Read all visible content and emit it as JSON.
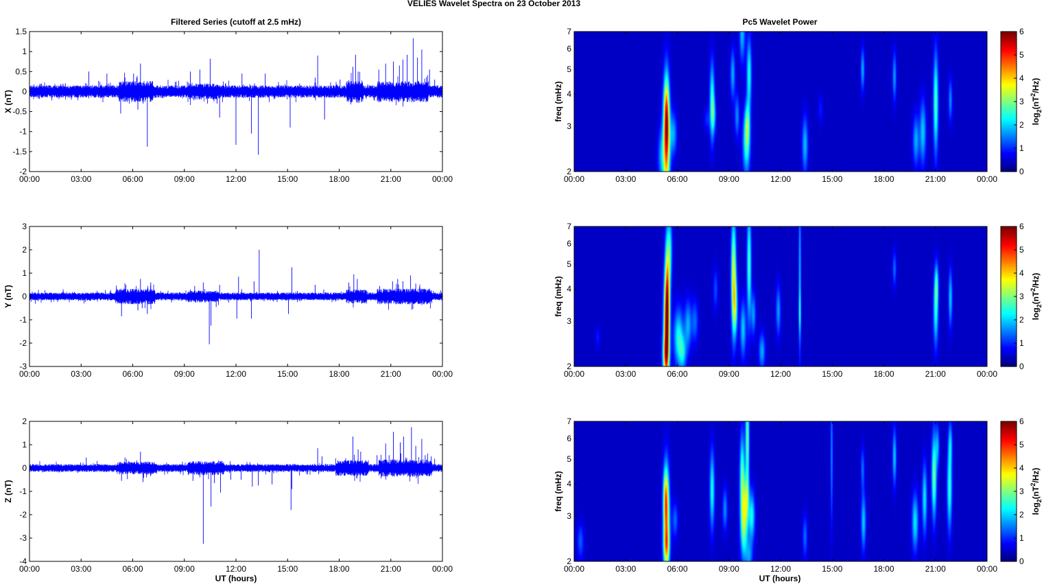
{
  "figure": {
    "title": "VELIES Wavelet Spectra on 23 October   2013",
    "left_column_title": "Filtered Series (cutoff at 2.5 mHz)",
    "right_column_title": "Pc5 Wavelet Power",
    "x_label": "UT (hours)",
    "spectrogram_y_label": "freq (mHz)",
    "colorbar_label": "log2(nT2/Hz)",
    "x_tick_labels": [
      "00:00",
      "03:00",
      "06:00",
      "09:00",
      "12:00",
      "15:00",
      "18:00",
      "21:00",
      "00:00"
    ]
  },
  "colors": {
    "trace": "#0000ff",
    "spectrogram_background": "#00008f",
    "colormap": "jet"
  },
  "chart_data": [
    {
      "type": "line",
      "panel": "X",
      "ylabel": "X (nT)",
      "xlim": [
        0,
        24
      ],
      "ylim": [
        -2,
        1.5
      ],
      "y_ticks": [
        "-2",
        "-1.5",
        "-1",
        "-0.5",
        "0",
        "0.5",
        "1",
        "1.5"
      ],
      "y_tick_values": [
        -2,
        -1.5,
        -1,
        -0.5,
        0,
        0.5,
        1,
        1.5
      ],
      "base_noise": 0.12,
      "activity": [
        [
          0,
          0.3,
          1.0
        ],
        [
          5.2,
          7.2,
          1.7
        ],
        [
          9.2,
          11.0,
          1.3
        ],
        [
          18.4,
          19.4,
          1.8
        ],
        [
          20.2,
          23.2,
          1.7
        ]
      ],
      "spikes": [
        [
          3.45,
          0.5
        ],
        [
          4.5,
          0.45
        ],
        [
          5.3,
          -0.55
        ],
        [
          5.55,
          0.35
        ],
        [
          5.85,
          0.25
        ],
        [
          6.05,
          0.45
        ],
        [
          6.3,
          -0.45
        ],
        [
          6.45,
          0.7
        ],
        [
          6.6,
          -0.3
        ],
        [
          6.85,
          -1.38
        ],
        [
          7.05,
          -0.25
        ],
        [
          9.35,
          0.5
        ],
        [
          9.9,
          0.55
        ],
        [
          10.35,
          -0.3
        ],
        [
          10.5,
          0.82
        ],
        [
          10.9,
          -0.3
        ],
        [
          11.05,
          -0.65
        ],
        [
          12.0,
          -1.33
        ],
        [
          12.35,
          0.45
        ],
        [
          12.9,
          -1.05
        ],
        [
          13.3,
          -1.58
        ],
        [
          13.7,
          0.45
        ],
        [
          15.15,
          -0.9
        ],
        [
          15.7,
          0.2
        ],
        [
          16.6,
          0.35
        ],
        [
          16.75,
          0.9
        ],
        [
          17.15,
          -0.7
        ],
        [
          18.05,
          0.3
        ],
        [
          18.8,
          0.62
        ],
        [
          18.95,
          0.92
        ],
        [
          19.1,
          0.5
        ],
        [
          20.3,
          0.55
        ],
        [
          20.7,
          0.7
        ],
        [
          21.15,
          0.75
        ],
        [
          21.5,
          0.65
        ],
        [
          21.7,
          0.8
        ],
        [
          21.95,
          0.92
        ],
        [
          22.3,
          1.33
        ],
        [
          22.55,
          0.85
        ],
        [
          22.8,
          1.05
        ],
        [
          23.25,
          0.55
        ],
        [
          23.55,
          0.3
        ]
      ]
    },
    {
      "type": "line",
      "panel": "Y",
      "ylabel": "Y (nT)",
      "xlim": [
        0,
        24
      ],
      "ylim": [
        -3,
        3
      ],
      "y_ticks": [
        "-3",
        "-2",
        "-1",
        "0",
        "1",
        "2",
        "3"
      ],
      "y_tick_values": [
        -3,
        -2,
        -1,
        0,
        1,
        2,
        3
      ],
      "base_noise": 0.13,
      "activity": [
        [
          5.0,
          7.3,
          2.0
        ],
        [
          9.2,
          11.0,
          1.5
        ],
        [
          18.4,
          19.6,
          1.8
        ],
        [
          20.2,
          23.4,
          2.0
        ]
      ],
      "spikes": [
        [
          5.35,
          -0.85
        ],
        [
          5.6,
          0.5
        ],
        [
          6.3,
          -0.6
        ],
        [
          6.45,
          0.75
        ],
        [
          6.55,
          -0.5
        ],
        [
          6.85,
          -0.75
        ],
        [
          7.05,
          0.6
        ],
        [
          9.6,
          0.45
        ],
        [
          10.1,
          0.6
        ],
        [
          10.45,
          -2.05
        ],
        [
          10.55,
          -1.25
        ],
        [
          10.85,
          -0.45
        ],
        [
          11.05,
          0.5
        ],
        [
          12.05,
          -0.95
        ],
        [
          12.15,
          0.85
        ],
        [
          12.9,
          -0.95
        ],
        [
          13.05,
          0.65
        ],
        [
          13.35,
          2.0
        ],
        [
          15.05,
          -0.75
        ],
        [
          15.25,
          1.25
        ],
        [
          16.6,
          0.5
        ],
        [
          17.1,
          0.3
        ],
        [
          18.55,
          0.6
        ],
        [
          18.85,
          0.95
        ],
        [
          19.05,
          0.75
        ],
        [
          20.35,
          0.45
        ],
        [
          21.1,
          0.65
        ],
        [
          21.4,
          0.75
        ],
        [
          21.7,
          0.65
        ],
        [
          22.15,
          0.9
        ],
        [
          22.45,
          0.55
        ],
        [
          23.25,
          0.3
        ]
      ]
    },
    {
      "type": "line",
      "panel": "Z",
      "ylabel": "Z (nT)",
      "xlim": [
        0,
        24
      ],
      "ylim": [
        -4,
        2
      ],
      "y_ticks": [
        "-4",
        "-3",
        "-2",
        "-1",
        "0",
        "1",
        "2"
      ],
      "y_tick_values": [
        -4,
        -3,
        -2,
        -1,
        0,
        1,
        2
      ],
      "base_noise": 0.13,
      "activity": [
        [
          5.2,
          7.4,
          1.6
        ],
        [
          9.2,
          11.3,
          1.8
        ],
        [
          17.8,
          19.7,
          2.0
        ],
        [
          20.3,
          23.4,
          2.2
        ]
      ],
      "spikes": [
        [
          3.3,
          0.45
        ],
        [
          5.35,
          -0.55
        ],
        [
          5.55,
          0.45
        ],
        [
          5.75,
          0.3
        ],
        [
          6.45,
          0.7
        ],
        [
          6.6,
          -0.6
        ],
        [
          6.8,
          -0.4
        ],
        [
          9.5,
          -0.55
        ],
        [
          9.9,
          -0.4
        ],
        [
          10.1,
          -3.25
        ],
        [
          10.55,
          -1.65
        ],
        [
          10.75,
          -0.65
        ],
        [
          11.1,
          -1.05
        ],
        [
          11.7,
          -0.5
        ],
        [
          12.3,
          -0.5
        ],
        [
          12.95,
          -0.8
        ],
        [
          13.3,
          -0.75
        ],
        [
          14.1,
          -0.7
        ],
        [
          15.2,
          -1.8
        ],
        [
          15.25,
          -0.9
        ],
        [
          16.75,
          0.85
        ],
        [
          17.0,
          0.5
        ],
        [
          18.8,
          1.35
        ],
        [
          19.1,
          0.8
        ],
        [
          19.25,
          0.7
        ],
        [
          20.2,
          0.55
        ],
        [
          20.7,
          1.05
        ],
        [
          20.9,
          0.55
        ],
        [
          21.15,
          1.55
        ],
        [
          21.55,
          1.1
        ],
        [
          21.75,
          1.35
        ],
        [
          22.2,
          1.75
        ],
        [
          22.45,
          0.95
        ],
        [
          22.8,
          1.25
        ],
        [
          23.0,
          0.55
        ],
        [
          23.35,
          0.5
        ],
        [
          23.55,
          0.4
        ]
      ]
    },
    {
      "type": "heatmap",
      "panel": "X",
      "ylabel": "freq (mHz)",
      "xlim": [
        0,
        24
      ],
      "ylim": [
        2,
        7
      ],
      "y_scale": "log",
      "y_ticks": [
        "2",
        "3",
        "4",
        "5",
        "6",
        "7"
      ],
      "y_tick_values": [
        2,
        3,
        4,
        5,
        6,
        7
      ],
      "colorbar_ticks": [
        "0",
        "1",
        "2",
        "3",
        "4",
        "5",
        "6"
      ],
      "zlim": [
        0,
        6
      ],
      "blobs": [
        [
          5.35,
          2.6,
          0.14,
          1.7,
          4.2
        ],
        [
          5.35,
          3.35,
          0.1,
          1.0,
          2.2
        ],
        [
          5.05,
          2.3,
          0.15,
          0.8,
          1.2
        ],
        [
          5.75,
          2.8,
          0.14,
          0.6,
          1.4
        ],
        [
          8.0,
          3.75,
          0.1,
          1.1,
          2.2
        ],
        [
          8.1,
          3.3,
          0.1,
          0.5,
          1.0
        ],
        [
          9.2,
          4.8,
          0.1,
          0.7,
          1.4
        ],
        [
          9.45,
          3.3,
          0.1,
          0.6,
          1.2
        ],
        [
          9.75,
          6.9,
          0.12,
          0.8,
          1.5
        ],
        [
          10.0,
          2.6,
          0.15,
          0.9,
          2.2
        ],
        [
          10.15,
          4.8,
          0.1,
          1.0,
          2.0
        ],
        [
          10.05,
          3.1,
          0.1,
          0.6,
          1.4
        ],
        [
          13.4,
          2.55,
          0.12,
          0.8,
          1.5
        ],
        [
          16.75,
          5.0,
          0.08,
          0.6,
          1.4
        ],
        [
          18.6,
          4.7,
          0.08,
          0.7,
          1.3
        ],
        [
          19.85,
          2.65,
          0.13,
          0.7,
          1.4
        ],
        [
          20.25,
          2.85,
          0.13,
          0.9,
          1.6
        ],
        [
          21.0,
          3.7,
          0.1,
          1.4,
          2.4
        ],
        [
          21.85,
          3.8,
          0.08,
          0.6,
          1.2
        ],
        [
          7.7,
          3.2,
          0.12,
          0.3,
          0.6
        ],
        [
          14.3,
          3.5,
          0.1,
          0.4,
          0.5
        ]
      ]
    },
    {
      "type": "heatmap",
      "panel": "Y",
      "ylabel": "freq (mHz)",
      "xlim": [
        0,
        24
      ],
      "ylim": [
        2,
        7
      ],
      "y_scale": "log",
      "y_ticks": [
        "2",
        "3",
        "4",
        "5",
        "6",
        "7"
      ],
      "y_tick_values": [
        2,
        3,
        4,
        5,
        6,
        7
      ],
      "colorbar_ticks": [
        "0",
        "1",
        "2",
        "3",
        "4",
        "5",
        "6"
      ],
      "zlim": [
        0,
        6
      ],
      "blobs": [
        [
          5.35,
          2.8,
          0.12,
          1.5,
          4.0
        ],
        [
          5.4,
          3.9,
          0.1,
          1.6,
          3.2
        ],
        [
          5.3,
          2.2,
          0.13,
          0.6,
          2.2
        ],
        [
          5.55,
          5.7,
          0.1,
          1.0,
          1.6
        ],
        [
          6.05,
          2.6,
          0.2,
          0.8,
          2.0
        ],
        [
          6.3,
          2.25,
          0.15,
          0.5,
          1.4
        ],
        [
          6.6,
          2.9,
          0.14,
          0.7,
          1.4
        ],
        [
          7.0,
          3.0,
          0.14,
          0.6,
          1.0
        ],
        [
          9.25,
          4.5,
          0.1,
          1.6,
          3.3
        ],
        [
          9.35,
          3.4,
          0.1,
          0.8,
          1.8
        ],
        [
          9.8,
          2.8,
          0.12,
          0.8,
          1.6
        ],
        [
          10.15,
          5.0,
          0.09,
          1.6,
          2.3
        ],
        [
          10.4,
          3.2,
          0.1,
          0.6,
          1.3
        ],
        [
          10.9,
          2.3,
          0.13,
          0.5,
          1.4
        ],
        [
          11.85,
          3.3,
          0.1,
          0.7,
          1.3
        ],
        [
          13.1,
          4.6,
          0.05,
          2.4,
          1.5
        ],
        [
          13.1,
          3.2,
          0.05,
          0.6,
          1.0
        ],
        [
          8.2,
          4.0,
          0.1,
          0.6,
          0.8
        ],
        [
          18.6,
          4.8,
          0.08,
          0.5,
          1.0
        ],
        [
          21.0,
          3.3,
          0.1,
          1.0,
          2.0
        ],
        [
          21.05,
          4.2,
          0.08,
          0.6,
          1.5
        ],
        [
          21.85,
          3.7,
          0.08,
          0.8,
          1.6
        ],
        [
          1.35,
          2.6,
          0.1,
          0.3,
          0.5
        ]
      ]
    },
    {
      "type": "heatmap",
      "panel": "Z",
      "ylabel": "freq (mHz)",
      "xlim": [
        0,
        24
      ],
      "ylim": [
        2,
        7
      ],
      "y_scale": "log",
      "y_ticks": [
        "2",
        "3",
        "4",
        "5",
        "6",
        "7"
      ],
      "y_tick_values": [
        2,
        3,
        4,
        5,
        6,
        7
      ],
      "colorbar_ticks": [
        "0",
        "1",
        "2",
        "3",
        "4",
        "5",
        "6"
      ],
      "zlim": [
        0,
        6
      ],
      "blobs": [
        [
          5.35,
          2.8,
          0.13,
          1.5,
          3.6
        ],
        [
          5.3,
          3.6,
          0.1,
          0.8,
          2.0
        ],
        [
          5.35,
          2.3,
          0.12,
          0.5,
          1.6
        ],
        [
          5.85,
          2.9,
          0.12,
          0.5,
          1.0
        ],
        [
          0.35,
          2.4,
          0.14,
          0.5,
          0.9
        ],
        [
          8.0,
          3.8,
          0.1,
          1.1,
          2.0
        ],
        [
          8.75,
          3.2,
          0.1,
          0.6,
          1.2
        ],
        [
          9.85,
          2.8,
          0.14,
          1.0,
          2.6
        ],
        [
          9.75,
          4.3,
          0.1,
          1.2,
          2.4
        ],
        [
          10.05,
          6.0,
          0.08,
          1.5,
          2.5
        ],
        [
          10.0,
          3.5,
          0.1,
          0.7,
          1.8
        ],
        [
          10.3,
          3.0,
          0.13,
          0.7,
          2.0
        ],
        [
          10.15,
          2.1,
          0.14,
          0.5,
          1.2
        ],
        [
          13.4,
          2.5,
          0.1,
          0.6,
          1.0
        ],
        [
          14.95,
          5.2,
          0.05,
          2.0,
          1.2
        ],
        [
          16.8,
          2.85,
          0.1,
          0.8,
          1.6
        ],
        [
          16.75,
          4.6,
          0.08,
          0.6,
          1.0
        ],
        [
          18.6,
          5.1,
          0.08,
          0.8,
          1.6
        ],
        [
          19.8,
          2.85,
          0.13,
          0.8,
          1.8
        ],
        [
          20.35,
          3.5,
          0.1,
          1.0,
          1.8
        ],
        [
          20.9,
          4.3,
          0.1,
          1.2,
          2.6
        ],
        [
          21.1,
          5.6,
          0.08,
          0.6,
          1.3
        ],
        [
          21.8,
          3.9,
          0.1,
          1.2,
          2.2
        ],
        [
          21.85,
          5.8,
          0.08,
          0.6,
          1.2
        ]
      ]
    }
  ]
}
